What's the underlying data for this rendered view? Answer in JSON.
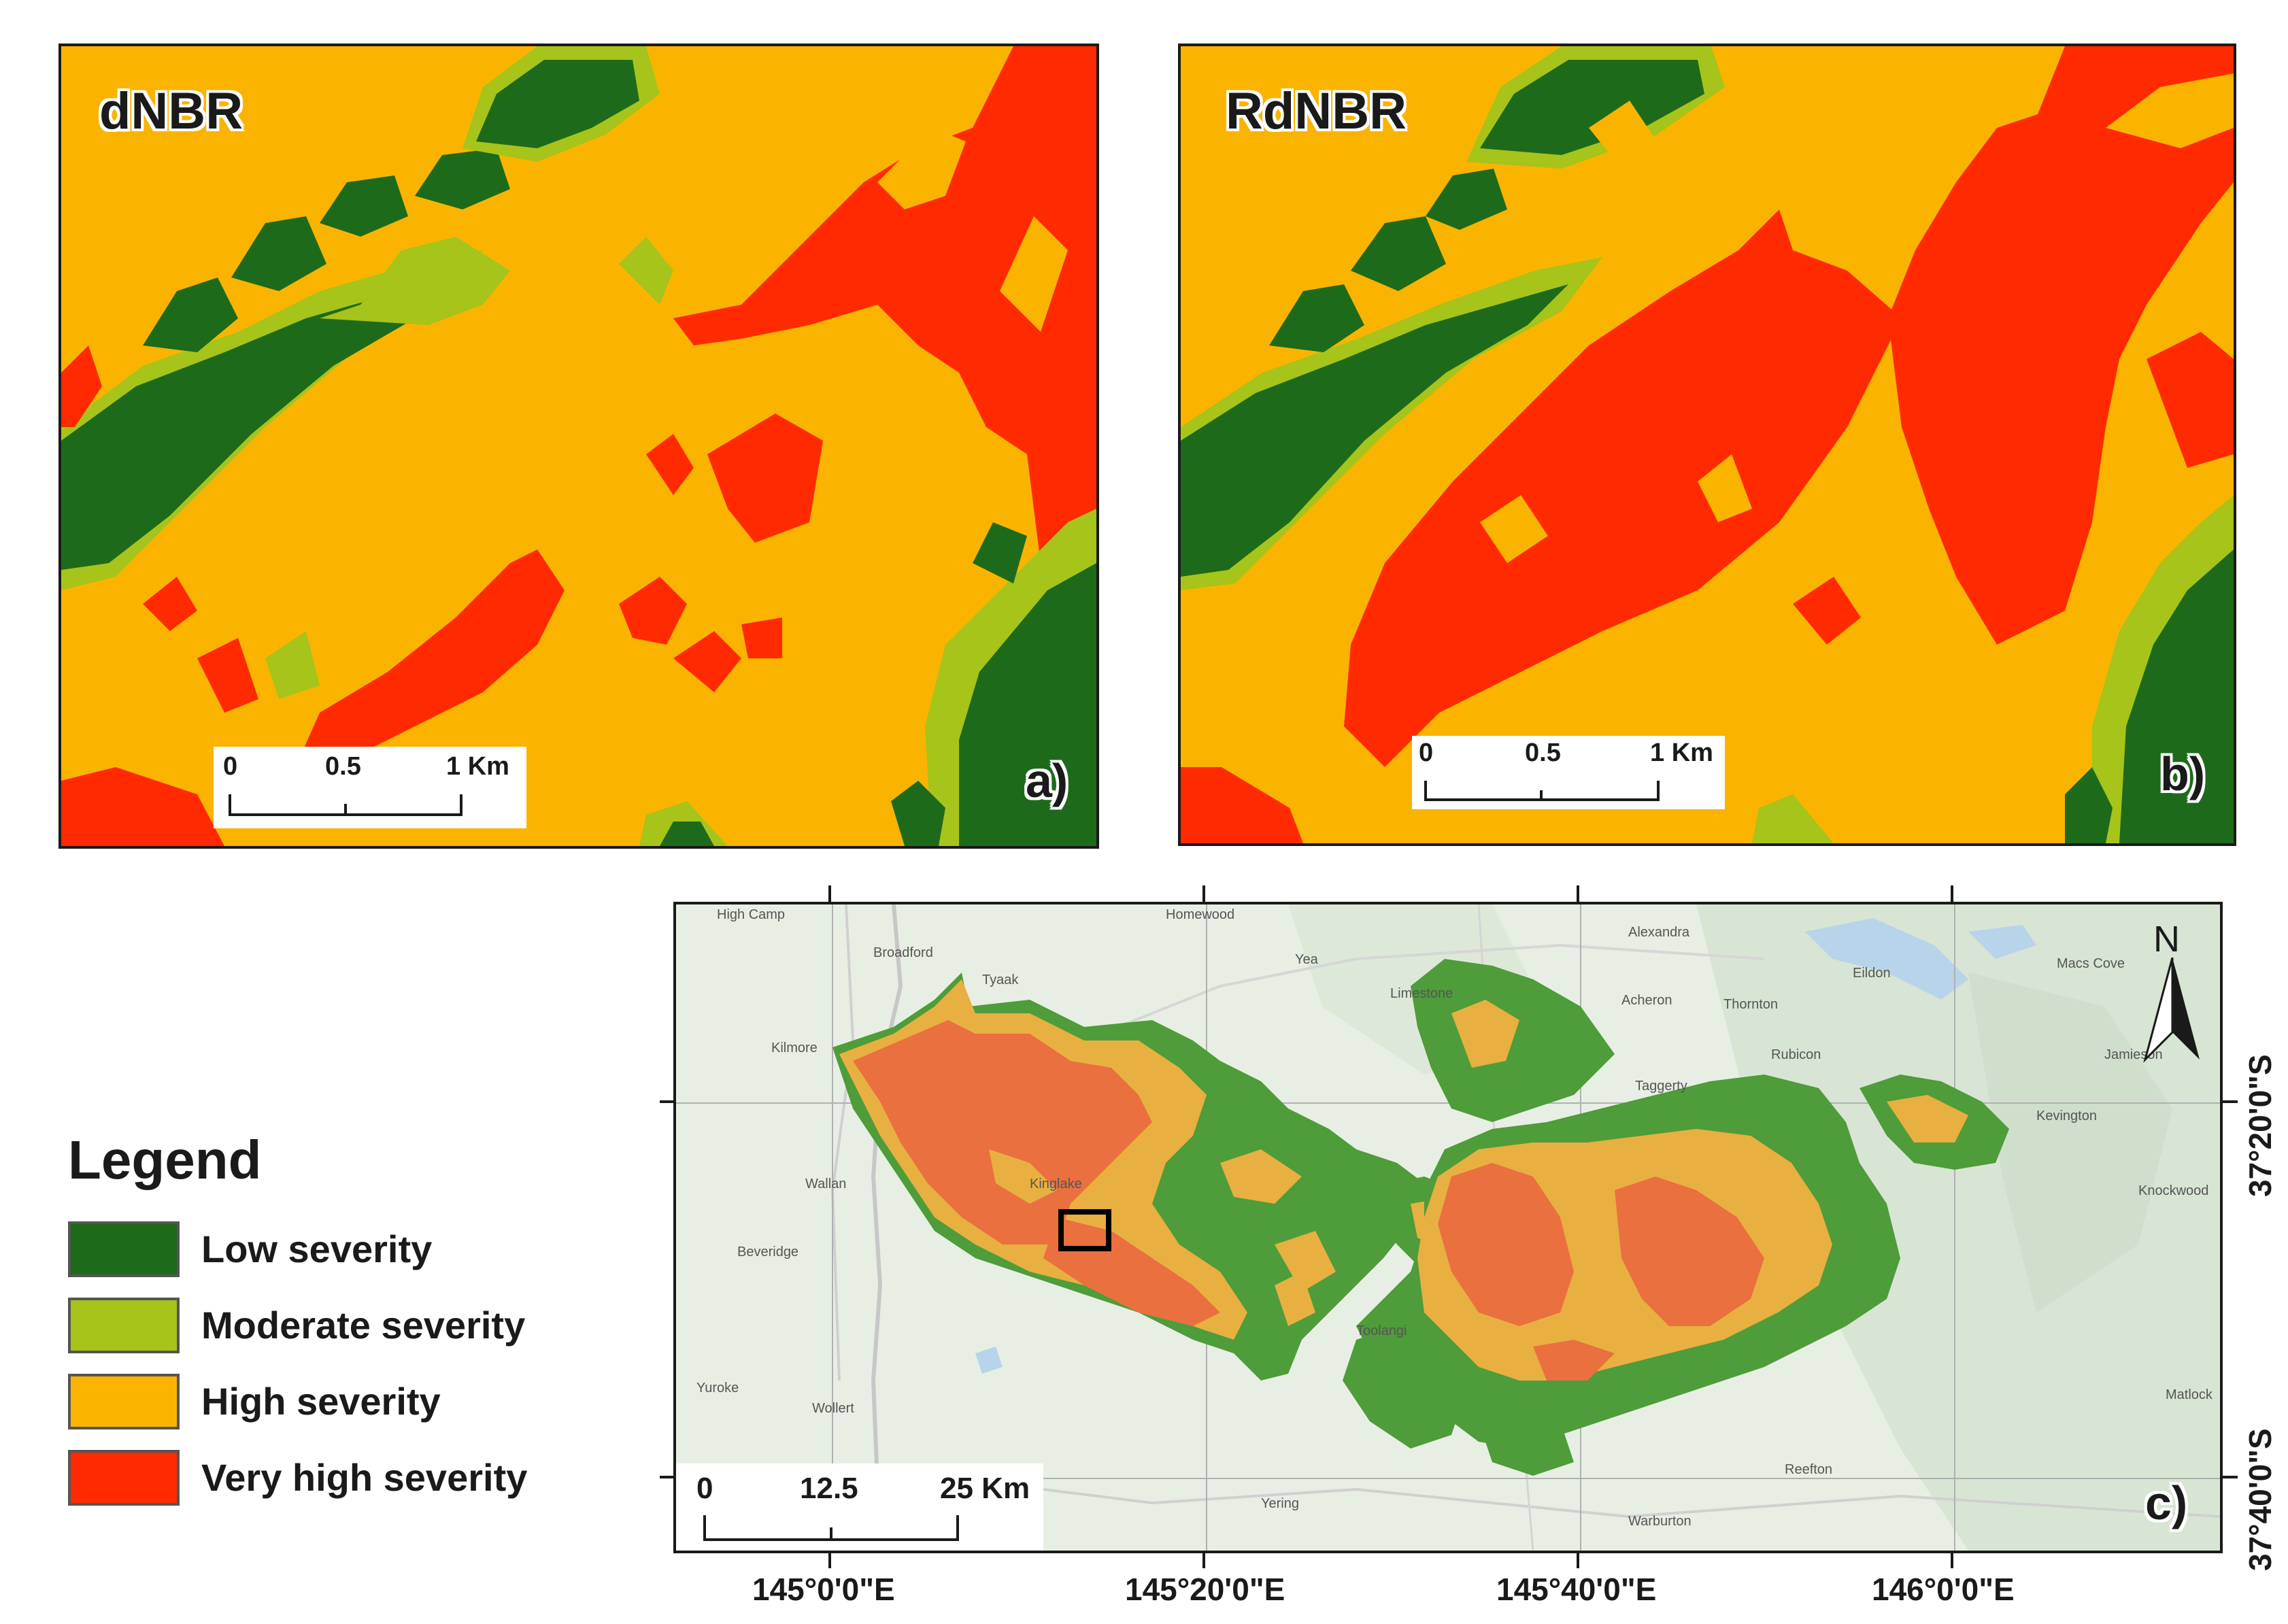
{
  "panels": {
    "a": {
      "title": "dNBR",
      "label": "a)"
    },
    "b": {
      "title": "RdNBR",
      "label": "b)"
    },
    "c": {
      "label": "c)"
    }
  },
  "scalebars": {
    "small": {
      "ticks": [
        "0",
        "0.5",
        "1 Km"
      ]
    },
    "large": {
      "ticks": [
        "0",
        "12.5",
        "25 Km"
      ]
    }
  },
  "north_arrow": {
    "label": "N"
  },
  "legend": {
    "title": "Legend",
    "items": [
      {
        "label": "Low severity",
        "color": "#1d6b1a"
      },
      {
        "label": "Moderate severity",
        "color": "#a6c41a"
      },
      {
        "label": "High severity",
        "color": "#fab400"
      },
      {
        "label": "Very high severity",
        "color": "#ff2a00"
      }
    ]
  },
  "coordinates": {
    "longitudes": [
      "145°0'0\"E",
      "145°20'0\"E",
      "145°40'0\"E",
      "146°0'0\"E"
    ],
    "latitudes": [
      "37°20'0\"S",
      "37°40'0\"S"
    ]
  },
  "places": [
    "High Camp",
    "Broadford",
    "Tyaak",
    "Homewood",
    "Yea",
    "Alexandra",
    "Kilmore",
    "Limestone",
    "Acheron",
    "Thornton",
    "Eildon",
    "Macs Cove",
    "Rubicon",
    "Taggerty",
    "Jamieson",
    "Kevington",
    "Wallan",
    "Kinglake",
    "Beveridge",
    "Toolangi",
    "Yuroke",
    "Wollert",
    "Reefton",
    "Yering",
    "Warburton",
    "Knockwood",
    "Matlock"
  ]
}
